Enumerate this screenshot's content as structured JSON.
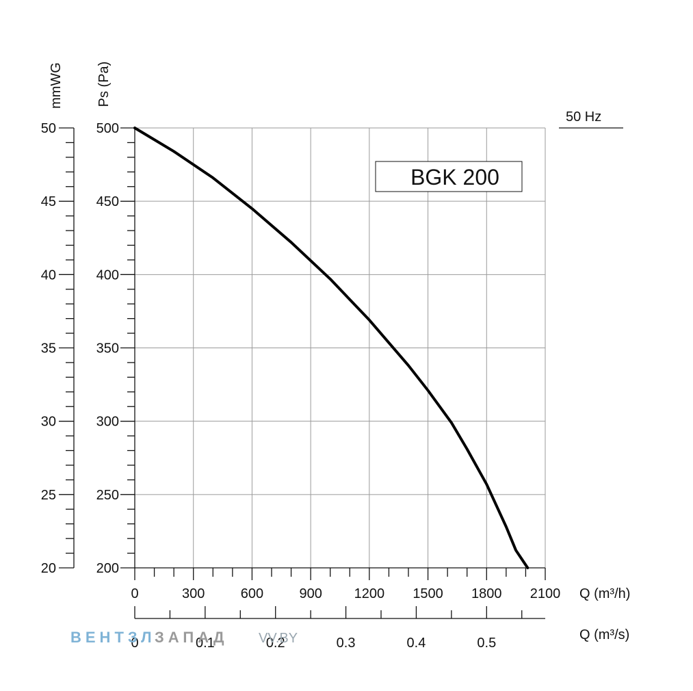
{
  "chart_data": {
    "type": "line",
    "model_label": "BGK 200",
    "frequency_label": "50 Hz",
    "y_left_outer": {
      "label": "mmWG",
      "ticks": [
        "50",
        "45",
        "40",
        "35",
        "30",
        "25",
        "20"
      ],
      "range": [
        20,
        50
      ]
    },
    "y_left_inner": {
      "label": "Ps (Pa)",
      "ticks": [
        "500",
        "450",
        "400",
        "350",
        "300",
        "250",
        "200"
      ],
      "range": [
        200,
        500
      ]
    },
    "x_primary": {
      "label": "Q (m³/h)",
      "ticks": [
        "0",
        "300",
        "600",
        "900",
        "1200",
        "1500",
        "1800",
        "2100"
      ],
      "range": [
        0,
        2100
      ]
    },
    "x_secondary": {
      "label": "Q (m³/s)",
      "ticks": [
        "0",
        "0.1",
        "0.2",
        "0.3",
        "0.4",
        "0.5"
      ],
      "range": [
        0,
        0.5833
      ]
    },
    "grid": true,
    "series": [
      {
        "x": [
          0,
          200,
          400,
          600,
          800,
          1000,
          1200,
          1400,
          1500,
          1620,
          1700,
          1800,
          1900,
          1950,
          2010
        ],
        "y": [
          500,
          484,
          466,
          445,
          422,
          397,
          369,
          338,
          321,
          299,
          281,
          257,
          228,
          212,
          200
        ]
      }
    ]
  },
  "watermark": {
    "part1": "ВЕНТЗЛ",
    "part2": "ЗАПАД",
    "part3": "VV.BY"
  }
}
